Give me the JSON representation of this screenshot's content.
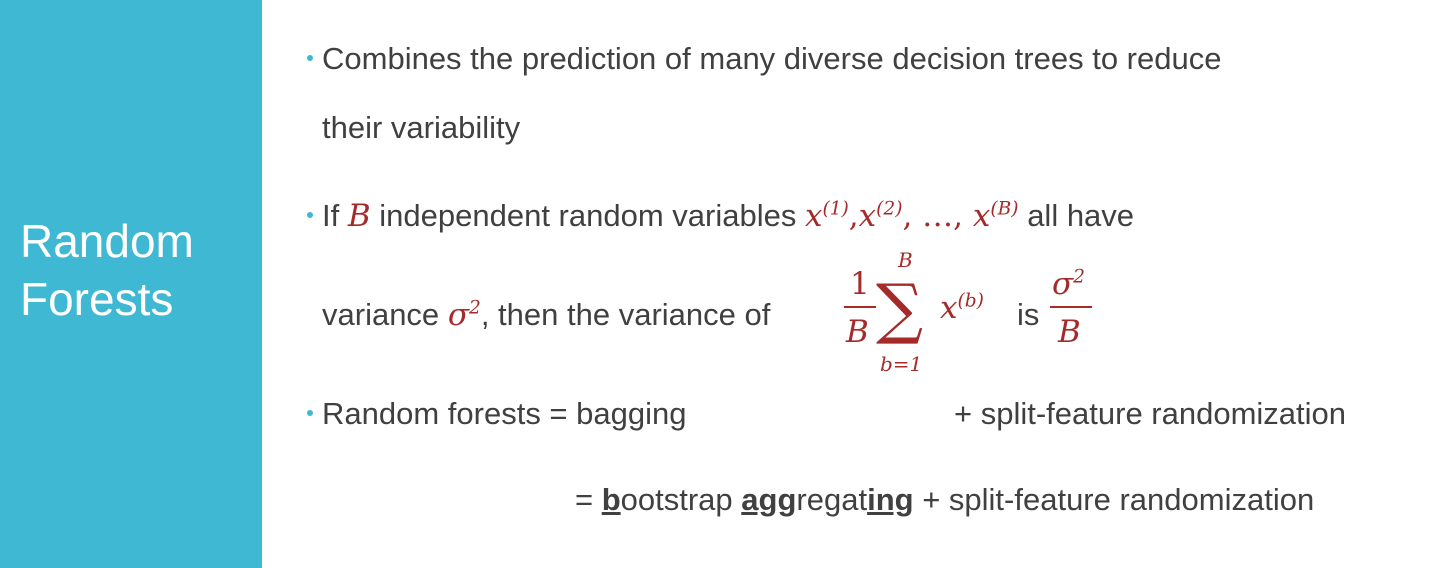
{
  "sidebar": {
    "title_line1": "Random",
    "title_line2": "Forests"
  },
  "bullet1": {
    "line1": "Combines the prediction of many diverse decision trees to reduce",
    "line2": "their variability"
  },
  "bullet2": {
    "text_if": "If",
    "var_B": "B",
    "text_independent": "independent random variables",
    "x_seq": "x",
    "sup1": "(1)",
    "sup2": "(2)",
    "sup_B": "(B)",
    "dots": ", …, ",
    "comma": ",",
    "text_all_have": "all have",
    "text_variance": "variance",
    "sigma": "σ",
    "sq": "2",
    "text_then": ", then the variance of",
    "frac_num": "1",
    "frac_den": "B",
    "sum_upper": "B",
    "sum_lower": "b=1",
    "sum_symbol": "∑",
    "sum_term_x": "x",
    "sum_term_sup": "(b)",
    "text_is": "is",
    "result_num_sigma": "σ",
    "result_num_sq": "2",
    "result_den": "B"
  },
  "bullet3": {
    "line1_left": "Random forests = bagging",
    "line1_right": "+ split-feature randomization",
    "line2_eq": "= ",
    "b": "b",
    "ootstrap": "ootstrap ",
    "agg": "agg",
    "regat": "regat",
    "ing": "ing",
    "line2_right": " + split-feature randomization"
  },
  "colors": {
    "sidebar": "#3fb8d3",
    "math": "#a52a2a",
    "text": "#404040"
  }
}
